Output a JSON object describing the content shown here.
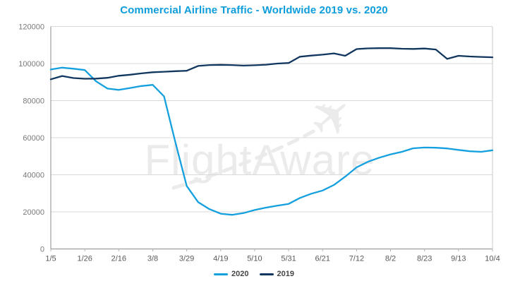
{
  "chart_data": {
    "type": "line",
    "title": "Commercial Airline Traffic - Worldwide 2019 vs. 2020",
    "xlabel": "",
    "ylabel": "",
    "ylim": [
      0,
      120000
    ],
    "y_ticks": [
      0,
      20000,
      40000,
      60000,
      80000,
      100000,
      120000
    ],
    "grid": "horizontal",
    "legend_position": "bottom-center",
    "x": [
      "1/5",
      "1/12",
      "1/19",
      "1/26",
      "2/2",
      "2/9",
      "2/16",
      "2/23",
      "3/1",
      "3/8",
      "3/15",
      "3/22",
      "3/29",
      "4/5",
      "4/12",
      "4/19",
      "4/26",
      "5/3",
      "5/10",
      "5/17",
      "5/24",
      "5/31",
      "6/7",
      "6/14",
      "6/21",
      "6/28",
      "7/5",
      "7/12",
      "7/19",
      "7/26",
      "8/2",
      "8/9",
      "8/16",
      "8/23",
      "8/30",
      "9/6",
      "9/13",
      "9/20",
      "9/27",
      "10/4"
    ],
    "x_axis_tick_labels": [
      "1/5",
      "1/26",
      "2/16",
      "3/8",
      "3/29",
      "4/19",
      "5/10",
      "5/31",
      "6/21",
      "7/12",
      "8/2",
      "8/23",
      "9/13",
      "10/4"
    ],
    "series": [
      {
        "name": "2020",
        "color": "#14a0de",
        "values": [
          96800,
          97800,
          97200,
          96500,
          90400,
          86500,
          85800,
          86800,
          87900,
          88500,
          82300,
          57500,
          34000,
          25300,
          21500,
          19000,
          18400,
          19300,
          21000,
          22300,
          23300,
          24300,
          27500,
          29800,
          31500,
          34500,
          39000,
          44000,
          47000,
          49200,
          51000,
          52400,
          54300,
          54700,
          54600,
          54200,
          53400,
          52700,
          52400,
          53200
        ]
      },
      {
        "name": "2019",
        "color": "#12375e",
        "values": [
          91500,
          93300,
          92200,
          91800,
          91900,
          92300,
          93400,
          94000,
          94700,
          95300,
          95600,
          95900,
          96100,
          98700,
          99200,
          99300,
          99200,
          98900,
          99100,
          99400,
          100000,
          100300,
          103700,
          104300,
          104800,
          105500,
          104200,
          107800,
          108200,
          108300,
          108300,
          108000,
          107900,
          108100,
          107600,
          102500,
          104200,
          103800,
          103600,
          103400
        ]
      }
    ],
    "watermark": {
      "text": "FlightAware",
      "icon": "airplane-icon",
      "icon_glyph": "✈"
    }
  },
  "colors": {
    "title": "#0d9ddb",
    "line_2020": "#14a0de",
    "line_2019": "#12375e",
    "gridline": "#d9d9d9",
    "axis_line": "#9e9e9e",
    "plot_border": "#c9c9c9",
    "tick": "#b5b5b5",
    "y_label": "#7a7a7a",
    "x_label": "#595959",
    "legend_text": "#454545",
    "watermark": "#ebebeb",
    "background": "#ffffff"
  }
}
